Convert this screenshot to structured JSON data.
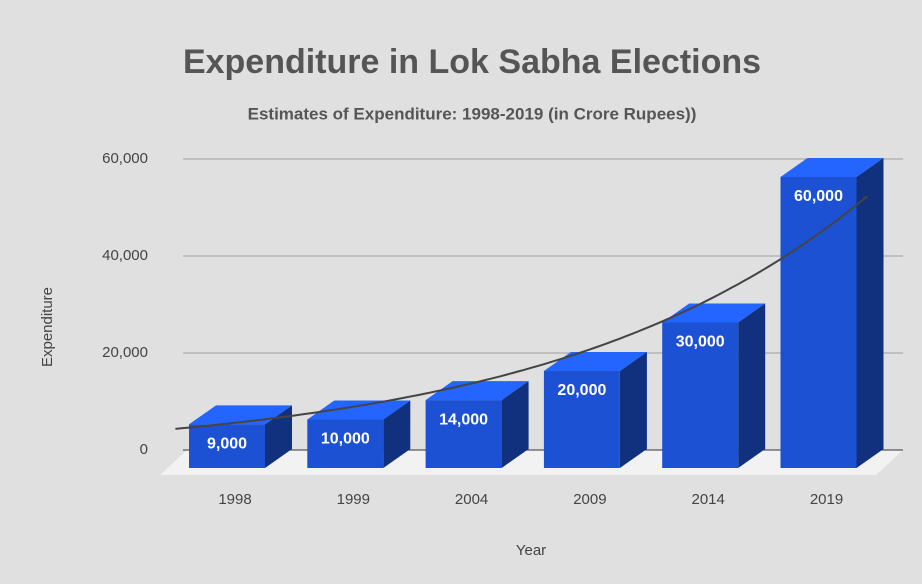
{
  "chart_data": {
    "type": "bar3d",
    "title": "Expenditure in Lok Sabha Elections",
    "subtitle": "Estimates of Expenditure: 1998-2019 (in Crore Rupees))",
    "x_label": "Year",
    "y_label": "Expenditure",
    "categories": [
      "1998",
      "1999",
      "2004",
      "2009",
      "2014",
      "2019"
    ],
    "values": [
      9000,
      10000,
      14000,
      20000,
      30000,
      60000
    ],
    "value_labels": [
      "9,000",
      "10,000",
      "14,000",
      "20,000",
      "30,000",
      "60,000"
    ],
    "color": "#1d51d4",
    "ylim": [
      0,
      60000
    ],
    "yticks": [
      0,
      {
        "value": 20000,
        "label": "20,000"
      },
      {
        "value": 40000,
        "label": "40,000"
      },
      {
        "value": 60000,
        "label": "60,000"
      }
    ],
    "grid": true,
    "trendline": "exponential"
  }
}
